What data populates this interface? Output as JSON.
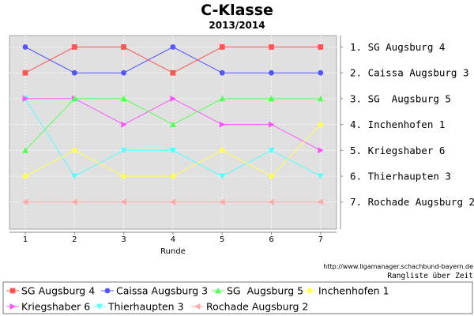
{
  "chart_data": {
    "type": "line",
    "title": "C-Klasse",
    "subtitle": "2013/2014",
    "xlabel": "Runde",
    "ylabel": "",
    "x": [
      1,
      2,
      3,
      4,
      5,
      6,
      7
    ],
    "xlim": [
      0.7,
      7.4
    ],
    "ylim": [
      1,
      7
    ],
    "y_inverted": true,
    "grid": true,
    "rank_labels": [
      "1. SG Augsburg 4",
      "2. Caissa Augsburg 3",
      "3. SG  Augsburg 5",
      "4. Inchenhofen 1",
      "5. Kriegshaber 6",
      "6. Thierhaupten 3",
      "7. Rochade Augsburg 2"
    ],
    "source_url": "http://www.ligamanager.schachbund-bayern.de",
    "caption": "Rangliste über Zeit",
    "legend_position": "bottom",
    "series": [
      {
        "name": "SG Augsburg 4",
        "values": [
          2,
          1,
          1,
          2,
          1,
          1,
          1
        ],
        "color": "#ff5555",
        "marker": "square"
      },
      {
        "name": "Caissa Augsburg 3",
        "values": [
          1,
          2,
          2,
          1,
          2,
          2,
          2
        ],
        "color": "#5555ff",
        "marker": "circle"
      },
      {
        "name": "SG  Augsburg 5",
        "values": [
          5,
          3,
          3,
          4,
          3,
          3,
          3
        ],
        "color": "#55ff55",
        "marker": "triangle-up"
      },
      {
        "name": "Inchenhofen 1",
        "values": [
          6,
          5,
          6,
          6,
          5,
          6,
          4
        ],
        "color": "#ffff55",
        "marker": "diamond"
      },
      {
        "name": "Kriegshaber 6",
        "values": [
          3,
          3,
          4,
          3,
          4,
          4,
          5
        ],
        "color": "#ff55ff",
        "marker": "triangle-right"
      },
      {
        "name": "Thierhaupten 3",
        "values": [
          3,
          6,
          5,
          5,
          6,
          5,
          6
        ],
        "color": "#55ffff",
        "marker": "triangle-down"
      },
      {
        "name": "Rochade Augsburg 2",
        "values": [
          7,
          7,
          7,
          7,
          7,
          7,
          7
        ],
        "color": "#ffaaaa",
        "marker": "triangle-left"
      }
    ]
  }
}
